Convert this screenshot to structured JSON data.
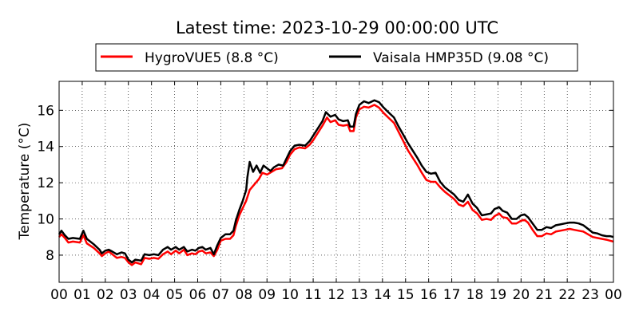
{
  "chart_data": {
    "type": "line",
    "title": "Latest time: 2023-10-29 00:00:00 UTC",
    "xlabel": "",
    "ylabel": "Temperature (°C)",
    "xlim": [
      0,
      24
    ],
    "ylim": [
      6.5,
      17.6
    ],
    "x_ticks": [
      {
        "value": 0,
        "label": "00"
      },
      {
        "value": 1,
        "label": "01"
      },
      {
        "value": 2,
        "label": "02"
      },
      {
        "value": 3,
        "label": "03"
      },
      {
        "value": 4,
        "label": "04"
      },
      {
        "value": 5,
        "label": "05"
      },
      {
        "value": 6,
        "label": "06"
      },
      {
        "value": 7,
        "label": "07"
      },
      {
        "value": 8,
        "label": "08"
      },
      {
        "value": 9,
        "label": "09"
      },
      {
        "value": 10,
        "label": "10"
      },
      {
        "value": 11,
        "label": "11"
      },
      {
        "value": 12,
        "label": "12"
      },
      {
        "value": 13,
        "label": "13"
      },
      {
        "value": 14,
        "label": "14"
      },
      {
        "value": 15,
        "label": "15"
      },
      {
        "value": 16,
        "label": "16"
      },
      {
        "value": 17,
        "label": "17"
      },
      {
        "value": 18,
        "label": "18"
      },
      {
        "value": 19,
        "label": "19"
      },
      {
        "value": 20,
        "label": "20"
      },
      {
        "value": 21,
        "label": "21"
      },
      {
        "value": 22,
        "label": "22"
      },
      {
        "value": 23,
        "label": "23"
      },
      {
        "value": 24,
        "label": "00"
      }
    ],
    "y_ticks": [
      {
        "value": 8,
        "label": "8"
      },
      {
        "value": 10,
        "label": "10"
      },
      {
        "value": 12,
        "label": "12"
      },
      {
        "value": 14,
        "label": "14"
      },
      {
        "value": 16,
        "label": "16"
      }
    ],
    "grid": true,
    "legend_position": "top",
    "series": [
      {
        "name": "HygroVUE5 (8.8 °C)",
        "color": "#ff0000",
        "points": [
          [
            0.0,
            9.0
          ],
          [
            0.1,
            9.15
          ],
          [
            0.25,
            8.95
          ],
          [
            0.4,
            8.7
          ],
          [
            0.6,
            8.75
          ],
          [
            0.9,
            8.7
          ],
          [
            1.05,
            9.1
          ],
          [
            1.2,
            8.65
          ],
          [
            1.5,
            8.4
          ],
          [
            1.75,
            8.1
          ],
          [
            1.85,
            7.95
          ],
          [
            2.0,
            8.1
          ],
          [
            2.15,
            8.2
          ],
          [
            2.3,
            8.05
          ],
          [
            2.5,
            7.85
          ],
          [
            2.7,
            7.9
          ],
          [
            2.85,
            7.85
          ],
          [
            3.0,
            7.6
          ],
          [
            3.15,
            7.45
          ],
          [
            3.3,
            7.6
          ],
          [
            3.55,
            7.5
          ],
          [
            3.7,
            7.85
          ],
          [
            3.9,
            7.8
          ],
          [
            4.1,
            7.85
          ],
          [
            4.3,
            7.8
          ],
          [
            4.5,
            8.05
          ],
          [
            4.7,
            8.2
          ],
          [
            4.85,
            8.05
          ],
          [
            5.05,
            8.25
          ],
          [
            5.2,
            8.1
          ],
          [
            5.4,
            8.3
          ],
          [
            5.55,
            8.0
          ],
          [
            5.75,
            8.1
          ],
          [
            5.9,
            8.05
          ],
          [
            6.05,
            8.2
          ],
          [
            6.2,
            8.25
          ],
          [
            6.35,
            8.1
          ],
          [
            6.55,
            8.15
          ],
          [
            6.7,
            7.95
          ],
          [
            6.85,
            8.3
          ],
          [
            7.0,
            8.8
          ],
          [
            7.2,
            8.9
          ],
          [
            7.4,
            8.9
          ],
          [
            7.55,
            9.1
          ],
          [
            7.65,
            9.6
          ],
          [
            7.8,
            10.2
          ],
          [
            7.95,
            10.6
          ],
          [
            8.1,
            11.0
          ],
          [
            8.25,
            11.6
          ],
          [
            8.45,
            11.9
          ],
          [
            8.65,
            12.2
          ],
          [
            8.8,
            12.55
          ],
          [
            9.0,
            12.45
          ],
          [
            9.2,
            12.6
          ],
          [
            9.4,
            12.75
          ],
          [
            9.65,
            12.8
          ],
          [
            9.85,
            13.15
          ],
          [
            10.0,
            13.55
          ],
          [
            10.2,
            13.85
          ],
          [
            10.4,
            13.95
          ],
          [
            10.65,
            13.9
          ],
          [
            10.85,
            14.1
          ],
          [
            11.0,
            14.35
          ],
          [
            11.2,
            14.75
          ],
          [
            11.4,
            15.15
          ],
          [
            11.6,
            15.6
          ],
          [
            11.75,
            15.35
          ],
          [
            11.95,
            15.45
          ],
          [
            12.1,
            15.2
          ],
          [
            12.3,
            15.15
          ],
          [
            12.5,
            15.2
          ],
          [
            12.6,
            14.85
          ],
          [
            12.75,
            14.85
          ],
          [
            12.85,
            15.6
          ],
          [
            13.0,
            16.05
          ],
          [
            13.2,
            16.2
          ],
          [
            13.4,
            16.15
          ],
          [
            13.65,
            16.3
          ],
          [
            13.85,
            16.15
          ],
          [
            14.05,
            15.85
          ],
          [
            14.25,
            15.6
          ],
          [
            14.5,
            15.3
          ],
          [
            14.7,
            14.8
          ],
          [
            14.9,
            14.3
          ],
          [
            15.1,
            13.8
          ],
          [
            15.3,
            13.4
          ],
          [
            15.5,
            13.0
          ],
          [
            15.7,
            12.55
          ],
          [
            15.9,
            12.15
          ],
          [
            16.1,
            12.05
          ],
          [
            16.3,
            12.05
          ],
          [
            16.5,
            11.75
          ],
          [
            16.7,
            11.5
          ],
          [
            16.9,
            11.3
          ],
          [
            17.1,
            11.1
          ],
          [
            17.3,
            10.8
          ],
          [
            17.5,
            10.7
          ],
          [
            17.7,
            10.95
          ],
          [
            17.9,
            10.5
          ],
          [
            18.1,
            10.3
          ],
          [
            18.3,
            9.95
          ],
          [
            18.5,
            10.0
          ],
          [
            18.7,
            9.95
          ],
          [
            18.85,
            10.15
          ],
          [
            19.05,
            10.3
          ],
          [
            19.2,
            10.1
          ],
          [
            19.4,
            10.05
          ],
          [
            19.6,
            9.75
          ],
          [
            19.8,
            9.75
          ],
          [
            20.0,
            9.9
          ],
          [
            20.15,
            9.95
          ],
          [
            20.3,
            9.8
          ],
          [
            20.5,
            9.4
          ],
          [
            20.7,
            9.05
          ],
          [
            20.9,
            9.05
          ],
          [
            21.1,
            9.2
          ],
          [
            21.3,
            9.15
          ],
          [
            21.5,
            9.3
          ],
          [
            21.7,
            9.35
          ],
          [
            21.9,
            9.4
          ],
          [
            22.1,
            9.45
          ],
          [
            22.3,
            9.4
          ],
          [
            22.5,
            9.35
          ],
          [
            22.7,
            9.3
          ],
          [
            22.9,
            9.15
          ],
          [
            23.1,
            9.0
          ],
          [
            23.3,
            8.95
          ],
          [
            23.5,
            8.9
          ],
          [
            23.7,
            8.85
          ],
          [
            23.85,
            8.8
          ],
          [
            24.0,
            8.75
          ]
        ]
      },
      {
        "name": "Vaisala HMP35D (9.08 °C)",
        "color": "#000000",
        "points": [
          [
            0.0,
            9.15
          ],
          [
            0.1,
            9.35
          ],
          [
            0.25,
            9.1
          ],
          [
            0.4,
            8.9
          ],
          [
            0.6,
            8.95
          ],
          [
            0.9,
            8.9
          ],
          [
            1.05,
            9.35
          ],
          [
            1.2,
            8.9
          ],
          [
            1.5,
            8.6
          ],
          [
            1.75,
            8.3
          ],
          [
            1.85,
            8.1
          ],
          [
            2.0,
            8.25
          ],
          [
            2.15,
            8.3
          ],
          [
            2.3,
            8.2
          ],
          [
            2.5,
            8.05
          ],
          [
            2.7,
            8.15
          ],
          [
            2.85,
            8.1
          ],
          [
            3.0,
            7.75
          ],
          [
            3.15,
            7.6
          ],
          [
            3.3,
            7.75
          ],
          [
            3.55,
            7.7
          ],
          [
            3.7,
            8.05
          ],
          [
            3.9,
            8.0
          ],
          [
            4.1,
            8.05
          ],
          [
            4.3,
            8.0
          ],
          [
            4.5,
            8.3
          ],
          [
            4.7,
            8.45
          ],
          [
            4.85,
            8.3
          ],
          [
            5.05,
            8.45
          ],
          [
            5.2,
            8.3
          ],
          [
            5.4,
            8.45
          ],
          [
            5.55,
            8.2
          ],
          [
            5.75,
            8.3
          ],
          [
            5.9,
            8.25
          ],
          [
            6.05,
            8.4
          ],
          [
            6.2,
            8.45
          ],
          [
            6.35,
            8.3
          ],
          [
            6.55,
            8.4
          ],
          [
            6.7,
            8.05
          ],
          [
            6.85,
            8.55
          ],
          [
            7.0,
            8.95
          ],
          [
            7.2,
            9.15
          ],
          [
            7.4,
            9.15
          ],
          [
            7.55,
            9.35
          ],
          [
            7.65,
            9.9
          ],
          [
            7.8,
            10.5
          ],
          [
            7.95,
            11.0
          ],
          [
            8.1,
            11.6
          ],
          [
            8.15,
            12.3
          ],
          [
            8.25,
            13.15
          ],
          [
            8.4,
            12.6
          ],
          [
            8.55,
            12.95
          ],
          [
            8.7,
            12.55
          ],
          [
            8.85,
            12.95
          ],
          [
            9.0,
            12.8
          ],
          [
            9.15,
            12.65
          ],
          [
            9.3,
            12.85
          ],
          [
            9.5,
            13.0
          ],
          [
            9.7,
            12.95
          ],
          [
            9.85,
            13.35
          ],
          [
            10.0,
            13.75
          ],
          [
            10.2,
            14.05
          ],
          [
            10.4,
            14.1
          ],
          [
            10.65,
            14.05
          ],
          [
            10.85,
            14.3
          ],
          [
            11.0,
            14.6
          ],
          [
            11.2,
            15.0
          ],
          [
            11.4,
            15.4
          ],
          [
            11.55,
            15.9
          ],
          [
            11.75,
            15.65
          ],
          [
            11.95,
            15.75
          ],
          [
            12.1,
            15.5
          ],
          [
            12.3,
            15.4
          ],
          [
            12.5,
            15.45
          ],
          [
            12.6,
            15.1
          ],
          [
            12.75,
            15.1
          ],
          [
            12.85,
            15.8
          ],
          [
            13.0,
            16.3
          ],
          [
            13.2,
            16.5
          ],
          [
            13.4,
            16.4
          ],
          [
            13.65,
            16.55
          ],
          [
            13.85,
            16.45
          ],
          [
            14.05,
            16.15
          ],
          [
            14.25,
            15.9
          ],
          [
            14.5,
            15.6
          ],
          [
            14.7,
            15.1
          ],
          [
            14.9,
            14.65
          ],
          [
            15.1,
            14.2
          ],
          [
            15.3,
            13.8
          ],
          [
            15.5,
            13.4
          ],
          [
            15.7,
            12.95
          ],
          [
            15.9,
            12.6
          ],
          [
            16.1,
            12.5
          ],
          [
            16.3,
            12.55
          ],
          [
            16.5,
            12.05
          ],
          [
            16.7,
            11.75
          ],
          [
            16.9,
            11.55
          ],
          [
            17.1,
            11.35
          ],
          [
            17.3,
            11.05
          ],
          [
            17.5,
            10.95
          ],
          [
            17.7,
            11.35
          ],
          [
            17.9,
            10.85
          ],
          [
            18.1,
            10.6
          ],
          [
            18.3,
            10.2
          ],
          [
            18.5,
            10.25
          ],
          [
            18.7,
            10.3
          ],
          [
            18.85,
            10.55
          ],
          [
            19.05,
            10.65
          ],
          [
            19.2,
            10.45
          ],
          [
            19.4,
            10.35
          ],
          [
            19.6,
            10.0
          ],
          [
            19.8,
            10.0
          ],
          [
            20.0,
            10.2
          ],
          [
            20.15,
            10.25
          ],
          [
            20.3,
            10.1
          ],
          [
            20.5,
            9.75
          ],
          [
            20.7,
            9.4
          ],
          [
            20.9,
            9.4
          ],
          [
            21.1,
            9.55
          ],
          [
            21.3,
            9.5
          ],
          [
            21.5,
            9.65
          ],
          [
            21.7,
            9.7
          ],
          [
            21.9,
            9.75
          ],
          [
            22.1,
            9.8
          ],
          [
            22.3,
            9.8
          ],
          [
            22.5,
            9.75
          ],
          [
            22.7,
            9.65
          ],
          [
            22.9,
            9.45
          ],
          [
            23.1,
            9.25
          ],
          [
            23.3,
            9.2
          ],
          [
            23.5,
            9.1
          ],
          [
            23.7,
            9.05
          ],
          [
            23.85,
            9.05
          ],
          [
            24.0,
            9.0
          ]
        ]
      }
    ]
  }
}
